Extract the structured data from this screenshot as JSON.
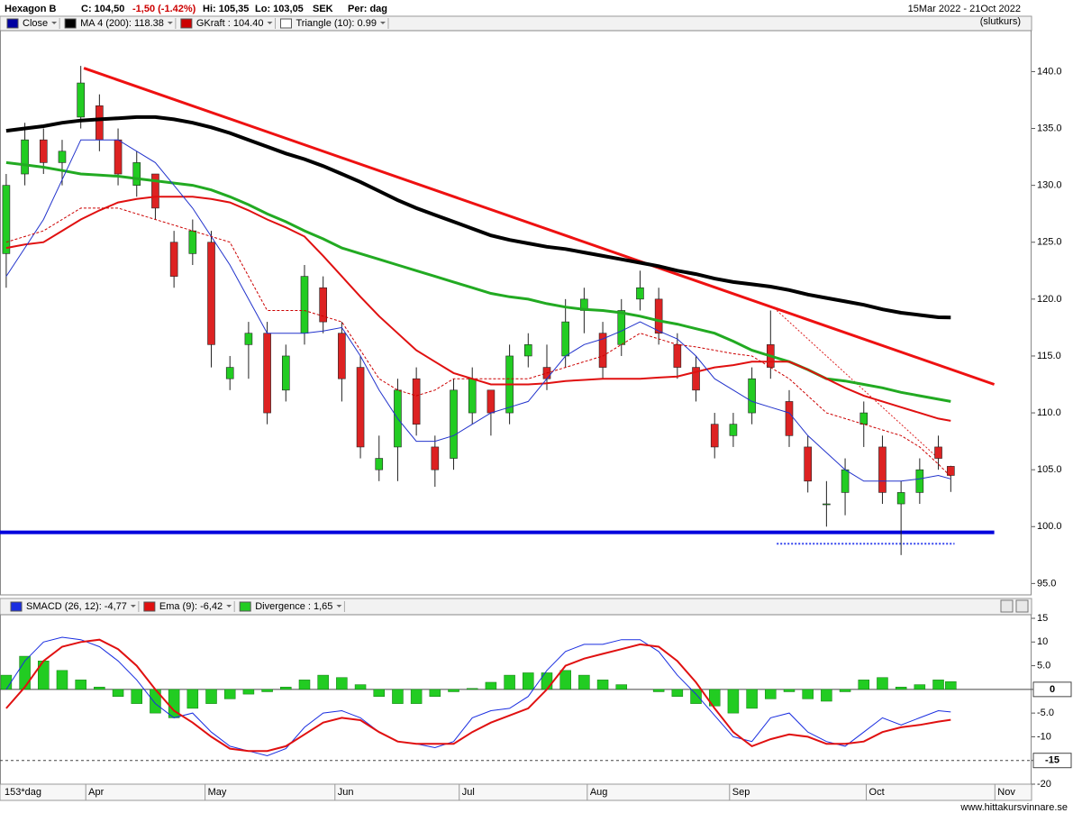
{
  "header": {
    "symbol": "Hexagon B",
    "close": "C: 104,50",
    "change": "-1,50 (-1.42%)",
    "high": "Hi: 105,35",
    "low": "Lo: 103,05",
    "currency": "SEK",
    "period": "Per: dag",
    "date_range": "15Mar 2022 - 21Oct 2022",
    "price_type": "(slutkurs)",
    "footer": "www.hittakursvinnare.se"
  },
  "chart_data": [
    {
      "type": "candlestick",
      "xlim": [
        -1,
        165
      ],
      "ylim": [
        94,
        143.6
      ],
      "yticks": [
        {
          "value": 95,
          "label": "95.0"
        },
        {
          "value": 100,
          "label": "100.0"
        },
        {
          "value": 105,
          "label": "105.0"
        },
        {
          "value": 110,
          "label": "110.0"
        },
        {
          "value": 115,
          "label": "115.0"
        },
        {
          "value": 120,
          "label": "120.0"
        },
        {
          "value": 125,
          "label": "125.0"
        },
        {
          "value": 130,
          "label": "130.0"
        },
        {
          "value": 135,
          "label": "135.0"
        },
        {
          "value": 140,
          "label": "140.0"
        }
      ],
      "x": [
        0,
        3,
        6,
        9,
        12,
        15,
        18,
        21,
        24,
        27,
        30,
        33,
        36,
        39,
        42,
        45,
        48,
        51,
        54,
        57,
        60,
        63,
        66,
        69,
        72,
        75,
        78,
        81,
        84,
        87,
        90,
        93,
        96,
        99,
        102,
        105,
        108,
        111,
        114,
        117,
        120,
        123,
        126,
        129,
        132,
        135,
        138,
        141,
        144,
        147,
        150,
        152
      ],
      "candles": {
        "name": "Close",
        "color": "#0000a0",
        "up_color": "#22cc22",
        "down_color": "#dd2222",
        "open": [
          124,
          131,
          134,
          132,
          136,
          137,
          134,
          130,
          131,
          125,
          124,
          125,
          113,
          116,
          117,
          112,
          117,
          121,
          117,
          114,
          105,
          107,
          113,
          107,
          106,
          110,
          112,
          110,
          115,
          114,
          115,
          119,
          117,
          116,
          120,
          120,
          116,
          114,
          109,
          108,
          110,
          116,
          111,
          107,
          102,
          103,
          109,
          107,
          102,
          103,
          107,
          105.3
        ],
        "high": [
          131,
          135.5,
          135,
          134,
          140.5,
          138,
          135,
          133,
          131,
          126,
          127,
          126,
          115,
          118,
          118,
          116,
          123,
          122,
          118,
          115,
          108,
          113,
          114,
          108,
          113,
          114,
          112,
          116,
          117,
          116,
          120,
          121,
          118,
          120,
          122.5,
          121,
          117,
          115,
          110,
          110,
          114,
          119,
          112,
          108,
          104,
          106,
          111,
          108,
          104,
          106,
          108,
          105.35
        ],
        "low": [
          121,
          130,
          131,
          130,
          135,
          133,
          130,
          129,
          127,
          121,
          123,
          114,
          112,
          113,
          109,
          111,
          116,
          117,
          111,
          106,
          104,
          104,
          108,
          103.5,
          105,
          109,
          108,
          109,
          114,
          112,
          114,
          117,
          113,
          115,
          119,
          116,
          113,
          111,
          106,
          107,
          109,
          113,
          107,
          103,
          100,
          101,
          107,
          102,
          97.5,
          102,
          105,
          103.05
        ],
        "close": [
          130,
          134,
          132,
          133,
          139,
          134,
          131,
          132,
          128,
          122,
          126,
          116,
          114,
          117,
          110,
          115,
          122,
          118,
          113,
          107,
          106,
          112,
          109,
          105,
          112,
          113,
          110,
          115,
          116,
          113,
          118,
          120,
          114,
          119,
          121,
          117,
          114,
          112,
          107,
          109,
          113,
          114,
          108,
          104,
          102,
          105,
          110,
          103,
          103,
          105,
          106,
          104.5
        ]
      },
      "lines": [
        {
          "name": "MA 4 (200): 118.38",
          "color": "#000000",
          "width": 4,
          "values": [
            134.8,
            135,
            135.2,
            135.5,
            135.7,
            135.8,
            135.9,
            136,
            136,
            135.8,
            135.5,
            135.1,
            134.6,
            134,
            133.4,
            132.8,
            132.3,
            131.7,
            131,
            130.3,
            129.5,
            128.7,
            128,
            127.4,
            126.8,
            126.2,
            125.6,
            125.2,
            124.9,
            124.6,
            124.4,
            124.1,
            123.8,
            123.5,
            123.2,
            122.9,
            122.5,
            122.2,
            121.8,
            121.5,
            121.3,
            121.1,
            120.8,
            120.4,
            120.1,
            119.8,
            119.5,
            119.1,
            118.8,
            118.6,
            118.4,
            118.38
          ]
        },
        {
          "color": "#22aa22",
          "width": 3,
          "values": [
            132,
            131.8,
            131.6,
            131.3,
            131,
            130.9,
            130.8,
            130.6,
            130.4,
            130.2,
            130,
            129.6,
            129,
            128.3,
            127.5,
            126.8,
            126,
            125.3,
            124.5,
            124,
            123.5,
            123,
            122.5,
            122,
            121.5,
            121,
            120.5,
            120.2,
            120,
            119.6,
            119.3,
            119.1,
            119,
            118.8,
            118.5,
            118.1,
            117.8,
            117.4,
            117,
            116.3,
            115.5,
            115,
            114.5,
            113.8,
            113,
            112.8,
            112.5,
            112.2,
            111.8,
            111.5,
            111.2,
            111
          ]
        },
        {
          "color": "#e01010",
          "width": 2,
          "values": [
            124.5,
            124.8,
            125,
            126,
            127,
            127.8,
            128.5,
            128.8,
            129,
            129,
            129,
            128.8,
            128.5,
            127.8,
            127,
            126.3,
            125.5,
            123.8,
            122,
            120.2,
            118.5,
            117,
            115.5,
            114.5,
            113.5,
            113,
            112.5,
            112.5,
            112.5,
            112.6,
            112.8,
            112.9,
            113,
            113,
            113,
            113.1,
            113.2,
            113.6,
            114,
            114.2,
            114.5,
            114.5,
            114.5,
            113.8,
            113,
            112.2,
            111.5,
            111,
            110.5,
            110,
            109.5,
            109.3
          ]
        },
        {
          "color": "#2233cc",
          "width": 1,
          "values": [
            122,
            124.5,
            127,
            130.5,
            134,
            134,
            134,
            133,
            132,
            130,
            128,
            125.5,
            123,
            120,
            117,
            117,
            117,
            117.2,
            117.5,
            115,
            112,
            109.5,
            107.5,
            107.5,
            108,
            109,
            110,
            110.5,
            111,
            113,
            115,
            116,
            116.5,
            117.2,
            118,
            117.2,
            116.5,
            115,
            113,
            112,
            111,
            110.5,
            110,
            108,
            106.5,
            105,
            104,
            104,
            104,
            104.2,
            104.5,
            104.2
          ]
        },
        {
          "name": "GKraft : 104.40",
          "color": "#cc0000",
          "width": 1,
          "dashed": true,
          "values": [
            125,
            125.5,
            126,
            127,
            128,
            128,
            128,
            127.5,
            127,
            126.5,
            126,
            125.5,
            125,
            122,
            119,
            119,
            119,
            118.5,
            118,
            115.5,
            113,
            112,
            111.5,
            112,
            113,
            113,
            113,
            113,
            113,
            113.5,
            114,
            114.5,
            115,
            116,
            117,
            116.5,
            116,
            115.8,
            115.5,
            115.2,
            115,
            114,
            113,
            111.5,
            110,
            109.5,
            109,
            108.5,
            108,
            107,
            105.5,
            104.4
          ]
        }
      ],
      "indicators": [
        {
          "name": "Triangle (10): 0.99",
          "color": "#ffffff"
        }
      ],
      "trendlines": [
        {
          "color": "#ee1111",
          "width": 3,
          "x": [
            12.5,
            159
          ],
          "values": [
            140.3,
            112.5
          ]
        },
        {
          "color": "#0000dd",
          "width": 4,
          "x": [
            -1,
            159
          ],
          "values": [
            99.5,
            99.5
          ]
        },
        {
          "color": "#3344ee",
          "width": 2,
          "dashed": true,
          "x": [
            124,
            152.6
          ],
          "values": [
            98.5,
            98.5
          ]
        },
        {
          "color": "#dd2222",
          "width": 1,
          "dashed": true,
          "x": [
            124,
            150
          ],
          "values": [
            119,
            106
          ]
        }
      ]
    },
    {
      "type": "macd",
      "xlim": [
        -1,
        165
      ],
      "ylim": [
        -20,
        15
      ],
      "yticks": [
        15,
        10,
        {
          "value": 5,
          "label": "5.0"
        },
        0,
        {
          "value": -5,
          "label": "-5.0"
        },
        -10,
        -15,
        -20
      ],
      "hlines": [
        {
          "value": 0,
          "dashed": false
        },
        {
          "value": -15,
          "dashed": true
        }
      ],
      "period_label": "153*dag",
      "xticks": [
        {
          "value": 12.8,
          "label": "Apr"
        },
        {
          "value": 32,
          "label": "May"
        },
        {
          "value": 52.9,
          "label": "Jun"
        },
        {
          "value": 72.9,
          "label": "Jul"
        },
        {
          "value": 93.5,
          "label": "Aug"
        },
        {
          "value": 116.4,
          "label": "Sep"
        },
        {
          "value": 138.4,
          "label": "Oct"
        },
        {
          "value": 159.1,
          "label": "Nov"
        }
      ],
      "x": [
        0,
        3,
        6,
        9,
        12,
        15,
        18,
        21,
        24,
        27,
        30,
        33,
        36,
        39,
        42,
        45,
        48,
        51,
        54,
        57,
        60,
        63,
        66,
        69,
        72,
        75,
        78,
        81,
        84,
        87,
        90,
        93,
        96,
        99,
        102,
        105,
        108,
        111,
        114,
        117,
        120,
        123,
        126,
        129,
        132,
        135,
        138,
        141,
        144,
        147,
        150,
        152
      ],
      "series": [
        {
          "name": "SMACD (26, 12): -4,77",
          "color": "#1a2ee0",
          "width": 1,
          "values": [
            0,
            6,
            10,
            11,
            10.5,
            9,
            6,
            2,
            -3,
            -6,
            -5,
            -9,
            -12,
            -13,
            -14,
            -12.5,
            -8,
            -5,
            -4.5,
            -6,
            -9,
            -11,
            -11.5,
            -12.3,
            -11,
            -6,
            -4.5,
            -4,
            -1.5,
            4,
            8,
            9.5,
            9.5,
            10.5,
            10.5,
            8,
            3,
            -1,
            -5.5,
            -10,
            -11,
            -6,
            -5,
            -9,
            -11,
            -12,
            -9,
            -6,
            -7.5,
            -6,
            -4.5,
            -4.77
          ]
        },
        {
          "name": "Ema (9): -6,42",
          "color": "#e01010",
          "width": 2,
          "values": [
            -4,
            0.5,
            6,
            9,
            10,
            10.5,
            8.5,
            5,
            0,
            -4.5,
            -7,
            -10,
            -12.5,
            -13,
            -13,
            -12,
            -9.5,
            -7,
            -6,
            -6.5,
            -9,
            -11,
            -11.5,
            -11.5,
            -11.5,
            -9,
            -7,
            -5.5,
            -4,
            0,
            5,
            6.5,
            7.5,
            8.5,
            9.5,
            9,
            6,
            1.5,
            -4,
            -9,
            -12,
            -10.5,
            -9.5,
            -10,
            -11.5,
            -11.5,
            -11,
            -9,
            -8,
            -7.5,
            -6.8,
            -6.42
          ]
        },
        {
          "name": "Divergence : 1,65",
          "color": "#22cc22",
          "bars": true,
          "values": [
            3,
            7,
            6,
            4,
            2,
            0.5,
            -1.5,
            -3,
            -5,
            -6,
            -4,
            -3,
            -2,
            -1,
            -0.5,
            0.5,
            2,
            3,
            2.5,
            1,
            -1.5,
            -3,
            -3,
            -1.5,
            -0.5,
            0.2,
            1.5,
            3,
            3.5,
            3.5,
            4,
            3,
            2,
            1,
            0,
            -0.5,
            -1.5,
            -3,
            -3.5,
            -5,
            -4,
            -2,
            -0.5,
            -2,
            -2.5,
            -0.5,
            2,
            2.5,
            0.5,
            1,
            2,
            1.65
          ]
        }
      ]
    }
  ]
}
